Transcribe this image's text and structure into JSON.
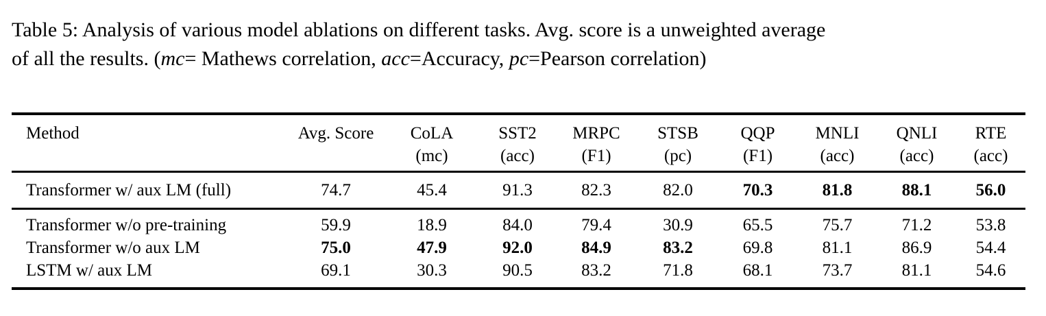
{
  "caption": {
    "lines": [
      {
        "segments": [
          {
            "text": "Table 5: Analysis of various model ablations on different tasks. Avg. score is a unweighted average",
            "italic": false
          }
        ]
      },
      {
        "segments": [
          {
            "text": "of all the results. (",
            "italic": false
          },
          {
            "text": "mc",
            "italic": true
          },
          {
            "text": "= Mathews correlation, ",
            "italic": false
          },
          {
            "text": "acc",
            "italic": true
          },
          {
            "text": "=Accuracy, ",
            "italic": false
          },
          {
            "text": "pc",
            "italic": true
          },
          {
            "text": "=Pearson correlation)",
            "italic": false
          }
        ]
      }
    ]
  },
  "table": {
    "columns": [
      {
        "label": "Method",
        "unit": ""
      },
      {
        "label": "Avg. Score",
        "unit": ""
      },
      {
        "label": "CoLA",
        "unit": "(mc)"
      },
      {
        "label": "SST2",
        "unit": "(acc)"
      },
      {
        "label": "MRPC",
        "unit": "(F1)"
      },
      {
        "label": "STSB",
        "unit": "(pc)"
      },
      {
        "label": "QQP",
        "unit": "(F1)"
      },
      {
        "label": "MNLI",
        "unit": "(acc)"
      },
      {
        "label": "QNLI",
        "unit": "(acc)"
      },
      {
        "label": "RTE",
        "unit": "(acc)"
      }
    ],
    "groups": [
      {
        "rows": [
          {
            "method": "Transformer w/ aux LM (full)",
            "values": [
              {
                "v": "74.7",
                "bold": false
              },
              {
                "v": "45.4",
                "bold": false
              },
              {
                "v": "91.3",
                "bold": false
              },
              {
                "v": "82.3",
                "bold": false
              },
              {
                "v": "82.0",
                "bold": false
              },
              {
                "v": "70.3",
                "bold": true
              },
              {
                "v": "81.8",
                "bold": true
              },
              {
                "v": "88.1",
                "bold": true
              },
              {
                "v": "56.0",
                "bold": true
              }
            ]
          }
        ]
      },
      {
        "rows": [
          {
            "method": "Transformer w/o pre-training",
            "values": [
              {
                "v": "59.9",
                "bold": false
              },
              {
                "v": "18.9",
                "bold": false
              },
              {
                "v": "84.0",
                "bold": false
              },
              {
                "v": "79.4",
                "bold": false
              },
              {
                "v": "30.9",
                "bold": false
              },
              {
                "v": "65.5",
                "bold": false
              },
              {
                "v": "75.7",
                "bold": false
              },
              {
                "v": "71.2",
                "bold": false
              },
              {
                "v": "53.8",
                "bold": false
              }
            ]
          },
          {
            "method": "Transformer w/o aux LM",
            "values": [
              {
                "v": "75.0",
                "bold": true
              },
              {
                "v": "47.9",
                "bold": true
              },
              {
                "v": "92.0",
                "bold": true
              },
              {
                "v": "84.9",
                "bold": true
              },
              {
                "v": "83.2",
                "bold": true
              },
              {
                "v": "69.8",
                "bold": false
              },
              {
                "v": "81.1",
                "bold": false
              },
              {
                "v": "86.9",
                "bold": false
              },
              {
                "v": "54.4",
                "bold": false
              }
            ]
          },
          {
            "method": "LSTM w/ aux LM",
            "values": [
              {
                "v": "69.1",
                "bold": false
              },
              {
                "v": "30.3",
                "bold": false
              },
              {
                "v": "90.5",
                "bold": false
              },
              {
                "v": "83.2",
                "bold": false
              },
              {
                "v": "71.8",
                "bold": false
              },
              {
                "v": "68.1",
                "bold": false
              },
              {
                "v": "73.7",
                "bold": false
              },
              {
                "v": "81.1",
                "bold": false
              },
              {
                "v": "54.6",
                "bold": false
              }
            ]
          }
        ]
      }
    ]
  },
  "colors": {
    "text": "#000000",
    "background": "#ffffff",
    "rule": "#000000"
  }
}
